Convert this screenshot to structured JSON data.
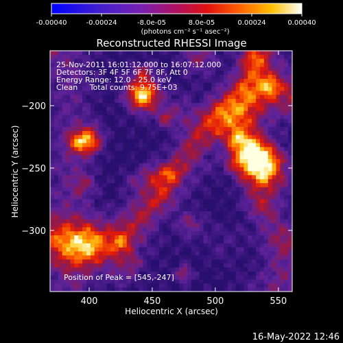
{
  "colorbar": {
    "ticks": [
      "-0.00040",
      "-0.00024",
      "-8.0e-05",
      "8.0e-05",
      "0.00024",
      "0.00040"
    ],
    "range": [
      -0.0004,
      0.0004
    ],
    "unit_label": "(photons cm⁻² s⁻¹ asec⁻²)"
  },
  "chart_data": {
    "type": "heatmap",
    "title": "Reconstructed RHESSI Image",
    "xlabel": "Heliocentric X (arcsec)",
    "ylabel": "Heliocentric Y (arcsec)",
    "xlim": [
      369,
      561
    ],
    "ylim": [
      -349,
      -156
    ],
    "xticks": [
      "400",
      "450",
      "500",
      "550"
    ],
    "yticks": [
      "-200",
      "-250",
      "-300"
    ],
    "annotations": [
      "25-Nov-2011 16:01:12.000 to 16:07:12.000",
      "Detectors: 3F 4F 5F 6F 7F 8F, Att 0",
      "Energy Range: 12.0 - 25.0 keV",
      "Clean     Total counts: 9.75E+03"
    ],
    "peak_label": "Position of Peak = [545,-247]",
    "peak": [
      545,
      -247
    ],
    "colormap": "blue-purple-red-orange-yellow-white"
  },
  "footer": {
    "timestamp": "16-May-2022 12:46"
  }
}
